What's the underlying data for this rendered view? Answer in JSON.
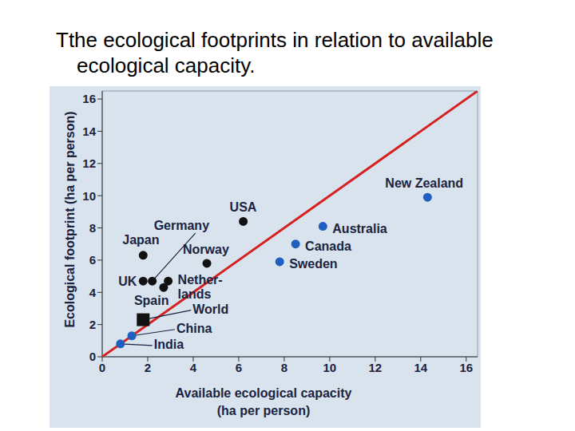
{
  "chart_data": {
    "type": "scatter",
    "title": "Tthe ecological footprints in relation to available ecological capacity.",
    "x_label": "Available ecological capacity (ha per person)",
    "y_label": "Ecological footprint (ha per person)",
    "xlim": [
      0,
      16.5
    ],
    "ylim": [
      0,
      16.5
    ],
    "xticks": [
      0,
      2,
      4,
      6,
      8,
      10,
      12,
      14,
      16
    ],
    "yticks": [
      0,
      2,
      4,
      6,
      8,
      10,
      12,
      14,
      16
    ],
    "grid": false,
    "points": [
      {
        "label": "India",
        "x": 0.8,
        "y": 0.8,
        "color": "#1f5fbf",
        "marker": "circle"
      },
      {
        "label": "China",
        "x": 1.3,
        "y": 1.3,
        "color": "#1f5fbf",
        "marker": "circle"
      },
      {
        "label": "World",
        "x": 1.8,
        "y": 2.3,
        "color": "#111111",
        "marker": "square"
      },
      {
        "label": "UK",
        "x": 1.8,
        "y": 4.7,
        "color": "#111111",
        "marker": "circle"
      },
      {
        "label": "Germany",
        "x": 2.2,
        "y": 4.7,
        "color": "#111111",
        "marker": "circle"
      },
      {
        "label": "Spain",
        "x": 2.7,
        "y": 4.3,
        "color": "#111111",
        "marker": "circle"
      },
      {
        "label": "Nether-\nlands",
        "x": 2.9,
        "y": 4.7,
        "color": "#111111",
        "marker": "circle"
      },
      {
        "label": "Japan",
        "x": 1.8,
        "y": 6.3,
        "color": "#111111",
        "marker": "circle"
      },
      {
        "label": "Norway",
        "x": 4.6,
        "y": 5.8,
        "color": "#111111",
        "marker": "circle"
      },
      {
        "label": "USA",
        "x": 6.2,
        "y": 8.4,
        "color": "#111111",
        "marker": "circle"
      },
      {
        "label": "Sweden",
        "x": 7.8,
        "y": 5.9,
        "color": "#1f5fbf",
        "marker": "circle"
      },
      {
        "label": "Canada",
        "x": 8.5,
        "y": 7.0,
        "color": "#1f5fbf",
        "marker": "circle"
      },
      {
        "label": "Australia",
        "x": 9.7,
        "y": 8.1,
        "color": "#1f5fbf",
        "marker": "circle"
      },
      {
        "label": "New Zealand",
        "x": 14.3,
        "y": 9.9,
        "color": "#1f5fbf",
        "marker": "circle"
      }
    ],
    "reference_line": {
      "x": [
        0,
        16.5
      ],
      "y": [
        0,
        16.5
      ],
      "color": "#d62020"
    }
  }
}
